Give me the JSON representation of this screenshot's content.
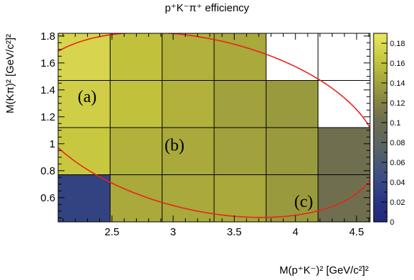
{
  "chart_data": {
    "type": "heatmap",
    "title": "p⁺K⁻π⁺ efficiency",
    "xlabel": "M(p⁺K⁻)² [GeV/c²]²",
    "ylabel": "M(Kπ)² [GeV/c²]²",
    "xlim": [
      2.06,
      4.61
    ],
    "ylim": [
      0.42,
      1.82
    ],
    "x_edges": [
      2.06,
      2.485,
      2.91,
      3.335,
      3.76,
      4.185,
      4.61
    ],
    "y_edges": [
      0.42,
      0.77,
      1.12,
      1.47,
      1.82
    ],
    "x_ticks": [
      "2.5",
      "3",
      "3.5",
      "4",
      "4.5"
    ],
    "x_tick_values": [
      2.5,
      3,
      3.5,
      4,
      4.5
    ],
    "y_ticks": [
      "0.6",
      "0.8",
      "1",
      "1.2",
      "1.4",
      "1.6",
      "1.8"
    ],
    "y_tick_values": [
      0.6,
      0.8,
      1.0,
      1.2,
      1.4,
      1.6,
      1.8
    ],
    "z_range": [
      0,
      0.19
    ],
    "z_ticks": [
      "0",
      "0.02",
      "0.04",
      "0.06",
      "0.08",
      "0.1",
      "0.12",
      "0.14",
      "0.16",
      "0.18"
    ],
    "z_tick_values": [
      0,
      0.02,
      0.04,
      0.06,
      0.08,
      0.1,
      0.12,
      0.14,
      0.16,
      0.18
    ],
    "cells": [
      [
        0.035,
        0.145,
        0.145,
        0.145,
        0.135,
        0.105
      ],
      [
        0.165,
        0.15,
        0.145,
        0.14,
        0.135,
        0.105
      ],
      [
        0.17,
        0.16,
        0.15,
        0.14,
        0.135,
        null
      ],
      [
        0.175,
        0.16,
        0.15,
        0.145,
        null,
        null
      ]
    ],
    "grid": true,
    "boundary_color": "#e8241c",
    "annotations": [
      {
        "text": "(a)",
        "x": 2.22,
        "y": 1.31
      },
      {
        "text": "(b)",
        "x": 2.93,
        "y": 0.95
      },
      {
        "text": "(c)",
        "x": 3.99,
        "y": 0.53
      }
    ]
  }
}
